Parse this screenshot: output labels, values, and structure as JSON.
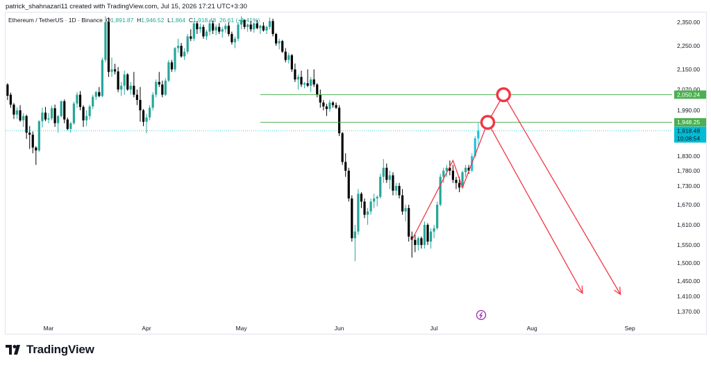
{
  "header": {
    "credit": "patrick_shahnazari11 created with TradingView.com, Jul 15, 2026 17:21 UTC+3:30"
  },
  "legend": {
    "symbol": "Ethereum / TetherUS · 1D · Binance",
    "o_label": "O",
    "o_value": "1,891.87",
    "h_label": "H",
    "h_value": "1,946.52",
    "l_label": "L",
    "l_value": "1,864",
    "c_label": "C",
    "c_value": "1,918.48",
    "change": "26.61 (+1.41%)"
  },
  "brand": {
    "name": "TradingView",
    "logo_icon": "tradingview-logo-icon"
  },
  "colors": {
    "up": "#26a69a",
    "up_bright": "#22c1dc",
    "down": "#000000",
    "level_line": "#4caf50",
    "projection": "#f23645",
    "price_tag": "#00bcd4"
  },
  "chart_data": {
    "type": "candlestick",
    "symbol": "ETHUSDT",
    "timeframe": "1D",
    "ylim": [
      1340,
      2380
    ],
    "y_ticks": [
      2350,
      2250,
      2150,
      2070,
      1990,
      1900,
      1830,
      1780,
      1730,
      1670,
      1610,
      1550,
      1500,
      1450,
      1410,
      1370
    ],
    "y_tick_labels": [
      "2,350.00",
      "2,250.00",
      "2,150.00",
      "2,070.00",
      "1,990.00",
      "1,900.00",
      "1,830.00",
      "1,780.00",
      "1,730.00",
      "1,670.00",
      "1,610.00",
      "1,550.00",
      "1,500.00",
      "1,450.00",
      "1,410.00",
      "1,370.00"
    ],
    "x_ticks": [
      "Mar",
      "Apr",
      "May",
      "Jun",
      "Jul",
      "Aug",
      "Sep"
    ],
    "x_tick_dates": [
      "2026-03-01",
      "2026-04-01",
      "2026-05-01",
      "2026-06-01",
      "2026-07-01",
      "2026-08-01",
      "2026-09-01"
    ],
    "horizontal_levels": [
      {
        "price": 2050.24,
        "label": "2,050.24",
        "start": "2026-05-07"
      },
      {
        "price": 1948.25,
        "label": "1,948.25",
        "start": "2026-05-07"
      }
    ],
    "current_price": {
      "price": 1918.48,
      "label": "1,918.48",
      "countdown": "10:08:54"
    },
    "projection_path": [
      {
        "date": "2026-06-24",
        "price": 1565
      },
      {
        "date": "2026-07-07",
        "price": 1815
      },
      {
        "date": "2026-07-10",
        "price": 1725
      },
      {
        "date": "2026-07-18",
        "price": 1948
      },
      {
        "date": "2026-07-23",
        "price": 2050
      }
    ],
    "projection_arrows": [
      {
        "from": {
          "date": "2026-07-18",
          "price": 1948
        },
        "to": {
          "date": "2026-08-17",
          "price": 1418
        }
      },
      {
        "from": {
          "date": "2026-07-23",
          "price": 2050
        },
        "to": {
          "date": "2026-08-29",
          "price": 1415
        }
      }
    ],
    "marked_points": [
      {
        "date": "2026-07-18",
        "price": 1948
      },
      {
        "date": "2026-07-23",
        "price": 2050
      }
    ],
    "candles": [
      [
        "2026-02-16",
        2090,
        2095,
        2030,
        2046
      ],
      [
        "2026-02-17",
        2050,
        2058,
        2000,
        2012
      ],
      [
        "2026-02-18",
        2012,
        2018,
        1960,
        1975
      ],
      [
        "2026-02-19",
        1975,
        2002,
        1960,
        1990
      ],
      [
        "2026-02-20",
        1990,
        2010,
        1950,
        1955
      ],
      [
        "2026-02-21",
        1955,
        1980,
        1932,
        1970
      ],
      [
        "2026-02-22",
        1970,
        1975,
        1890,
        1912
      ],
      [
        "2026-02-23",
        1912,
        1935,
        1855,
        1905
      ],
      [
        "2026-02-24",
        1905,
        1916,
        1840,
        1860
      ],
      [
        "2026-02-25",
        1860,
        1865,
        1800,
        1850
      ],
      [
        "2026-02-26",
        1850,
        1955,
        1845,
        1952
      ],
      [
        "2026-02-27",
        1952,
        2000,
        1930,
        1982
      ],
      [
        "2026-02-28",
        1982,
        2003,
        1952,
        1958
      ],
      [
        "2026-03-01",
        1958,
        1980,
        1945,
        1962
      ],
      [
        "2026-03-02",
        1962,
        2008,
        1955,
        1998
      ],
      [
        "2026-03-03",
        1998,
        2012,
        1932,
        1945
      ],
      [
        "2026-03-04",
        1945,
        1974,
        1912,
        1970
      ],
      [
        "2026-03-05",
        1970,
        2028,
        1965,
        2025
      ],
      [
        "2026-03-06",
        2025,
        2032,
        1945,
        1958
      ],
      [
        "2026-03-07",
        1958,
        1965,
        1920,
        1925
      ],
      [
        "2026-03-08",
        1925,
        1950,
        1912,
        1945
      ],
      [
        "2026-03-09",
        1945,
        2024,
        1940,
        2016
      ],
      [
        "2026-03-10",
        2016,
        2060,
        2000,
        2050
      ],
      [
        "2026-03-11",
        2050,
        2064,
        1990,
        2003
      ],
      [
        "2026-03-12",
        2003,
        2010,
        1932,
        1955
      ],
      [
        "2026-03-13",
        1955,
        1990,
        1935,
        1970
      ],
      [
        "2026-03-14",
        1970,
        2012,
        1958,
        2005
      ],
      [
        "2026-03-15",
        2005,
        2050,
        1995,
        2042
      ],
      [
        "2026-03-16",
        2042,
        2065,
        2030,
        2060
      ],
      [
        "2026-03-17",
        2060,
        2080,
        2040,
        2045
      ],
      [
        "2026-03-18",
        2045,
        2200,
        2040,
        2190
      ],
      [
        "2026-03-19",
        2190,
        2375,
        2180,
        2350
      ],
      [
        "2026-03-20",
        2350,
        2370,
        2120,
        2140
      ],
      [
        "2026-03-21",
        2140,
        2200,
        2120,
        2150
      ],
      [
        "2026-03-22",
        2150,
        2174,
        2130,
        2142
      ],
      [
        "2026-03-23",
        2142,
        2160,
        2060,
        2070
      ],
      [
        "2026-03-24",
        2070,
        2100,
        2045,
        2085
      ],
      [
        "2026-03-25",
        2085,
        2145,
        2050,
        2130
      ],
      [
        "2026-03-26",
        2130,
        2135,
        2065,
        2070
      ],
      [
        "2026-03-27",
        2070,
        2100,
        2050,
        2085
      ],
      [
        "2026-03-28",
        2085,
        2140,
        2040,
        2050
      ],
      [
        "2026-03-29",
        2050,
        2070,
        2010,
        2030
      ],
      [
        "2026-03-30",
        2030,
        2080,
        1950,
        1990
      ],
      [
        "2026-03-31",
        1990,
        1995,
        1935,
        1950
      ],
      [
        "2026-04-01",
        1950,
        1978,
        1910,
        1965
      ],
      [
        "2026-04-02",
        1965,
        2010,
        1955,
        2000
      ],
      [
        "2026-04-03",
        2000,
        2060,
        1990,
        2050
      ],
      [
        "2026-04-04",
        2050,
        2110,
        2040,
        2100
      ],
      [
        "2026-04-05",
        2100,
        2140,
        2080,
        2090
      ],
      [
        "2026-04-06",
        2090,
        2105,
        2040,
        2050
      ],
      [
        "2026-04-07",
        2050,
        2115,
        2045,
        2105
      ],
      [
        "2026-04-08",
        2105,
        2190,
        2100,
        2180
      ],
      [
        "2026-04-09",
        2180,
        2190,
        2140,
        2150
      ],
      [
        "2026-04-10",
        2150,
        2245,
        2140,
        2240
      ],
      [
        "2026-04-11",
        2240,
        2280,
        2220,
        2250
      ],
      [
        "2026-04-12",
        2250,
        2262,
        2200,
        2205
      ],
      [
        "2026-04-13",
        2205,
        2240,
        2190,
        2225
      ],
      [
        "2026-04-14",
        2225,
        2300,
        2215,
        2290
      ],
      [
        "2026-04-15",
        2290,
        2320,
        2270,
        2280
      ],
      [
        "2026-04-16",
        2280,
        2355,
        2270,
        2345
      ],
      [
        "2026-04-17",
        2345,
        2356,
        2300,
        2320
      ],
      [
        "2026-04-18",
        2320,
        2345,
        2305,
        2330
      ],
      [
        "2026-04-19",
        2330,
        2340,
        2280,
        2290
      ],
      [
        "2026-04-20",
        2290,
        2318,
        2275,
        2310
      ],
      [
        "2026-04-21",
        2310,
        2360,
        2295,
        2345
      ],
      [
        "2026-04-22",
        2345,
        2356,
        2300,
        2315
      ],
      [
        "2026-04-23",
        2315,
        2340,
        2295,
        2330
      ],
      [
        "2026-04-24",
        2330,
        2346,
        2300,
        2310
      ],
      [
        "2026-04-25",
        2310,
        2330,
        2285,
        2320
      ],
      [
        "2026-04-26",
        2320,
        2345,
        2305,
        2335
      ],
      [
        "2026-04-27",
        2335,
        2350,
        2290,
        2300
      ],
      [
        "2026-04-28",
        2300,
        2310,
        2255,
        2265
      ],
      [
        "2026-04-29",
        2265,
        2290,
        2240,
        2280
      ],
      [
        "2026-04-30",
        2280,
        2350,
        2270,
        2340
      ],
      [
        "2026-05-01",
        2340,
        2375,
        2320,
        2360
      ],
      [
        "2026-05-02",
        2360,
        2362,
        2320,
        2330
      ],
      [
        "2026-05-03",
        2330,
        2345,
        2310,
        2340
      ],
      [
        "2026-05-04",
        2340,
        2355,
        2310,
        2320
      ],
      [
        "2026-05-05",
        2320,
        2350,
        2305,
        2345
      ],
      [
        "2026-05-06",
        2345,
        2360,
        2320,
        2325
      ],
      [
        "2026-05-07",
        2325,
        2340,
        2300,
        2335
      ],
      [
        "2026-05-08",
        2335,
        2350,
        2310,
        2315
      ],
      [
        "2026-05-09",
        2315,
        2336,
        2300,
        2330
      ],
      [
        "2026-05-10",
        2330,
        2370,
        2320,
        2355
      ],
      [
        "2026-05-11",
        2355,
        2365,
        2290,
        2300
      ],
      [
        "2026-05-12",
        2300,
        2305,
        2250,
        2260
      ],
      [
        "2026-05-13",
        2260,
        2280,
        2235,
        2270
      ],
      [
        "2026-05-14",
        2270,
        2275,
        2220,
        2225
      ],
      [
        "2026-05-15",
        2225,
        2240,
        2180,
        2190
      ],
      [
        "2026-05-16",
        2190,
        2220,
        2175,
        2210
      ],
      [
        "2026-05-17",
        2210,
        2215,
        2140,
        2150
      ],
      [
        "2026-05-18",
        2150,
        2175,
        2100,
        2110
      ],
      [
        "2026-05-19",
        2110,
        2130,
        2070,
        2120
      ],
      [
        "2026-05-20",
        2120,
        2145,
        2080,
        2090
      ],
      [
        "2026-05-21",
        2090,
        2100,
        2075,
        2095
      ],
      [
        "2026-05-22",
        2095,
        2150,
        2080,
        2085
      ],
      [
        "2026-05-23",
        2085,
        2120,
        2060,
        2110
      ],
      [
        "2026-05-24",
        2110,
        2150,
        2080,
        2090
      ],
      [
        "2026-05-25",
        2090,
        2095,
        2040,
        2050
      ],
      [
        "2026-05-26",
        2050,
        2070,
        2000,
        2020
      ],
      [
        "2026-05-27",
        2020,
        2030,
        1990,
        2005
      ],
      [
        "2026-05-28",
        2005,
        2015,
        1970,
        1995
      ],
      [
        "2026-05-29",
        1995,
        2030,
        1985,
        2020
      ],
      [
        "2026-05-30",
        2020,
        2025,
        2000,
        2010
      ],
      [
        "2026-05-31",
        2010,
        2020,
        1995,
        2000
      ],
      [
        "2026-06-01",
        2000,
        2010,
        1900,
        1910
      ],
      [
        "2026-06-02",
        1910,
        1915,
        1800,
        1810
      ],
      [
        "2026-06-03",
        1810,
        1840,
        1760,
        1780
      ],
      [
        "2026-06-04",
        1780,
        1790,
        1680,
        1690
      ],
      [
        "2026-06-05",
        1690,
        1700,
        1560,
        1570
      ],
      [
        "2026-06-06",
        1570,
        1610,
        1505,
        1590
      ],
      [
        "2026-06-07",
        1590,
        1720,
        1580,
        1705
      ],
      [
        "2026-06-08",
        1705,
        1710,
        1660,
        1680
      ],
      [
        "2026-06-09",
        1680,
        1690,
        1630,
        1640
      ],
      [
        "2026-06-10",
        1640,
        1660,
        1610,
        1650
      ],
      [
        "2026-06-11",
        1650,
        1690,
        1640,
        1680
      ],
      [
        "2026-06-12",
        1680,
        1705,
        1660,
        1690
      ],
      [
        "2026-06-13",
        1690,
        1700,
        1665,
        1695
      ],
      [
        "2026-06-14",
        1695,
        1770,
        1690,
        1760
      ],
      [
        "2026-06-15",
        1760,
        1820,
        1740,
        1790
      ],
      [
        "2026-06-16",
        1790,
        1805,
        1740,
        1750
      ],
      [
        "2026-06-17",
        1750,
        1780,
        1720,
        1765
      ],
      [
        "2026-06-18",
        1765,
        1775,
        1700,
        1715
      ],
      [
        "2026-06-19",
        1715,
        1740,
        1700,
        1730
      ],
      [
        "2026-06-20",
        1730,
        1740,
        1690,
        1700
      ],
      [
        "2026-06-21",
        1700,
        1720,
        1640,
        1650
      ],
      [
        "2026-06-22",
        1650,
        1670,
        1620,
        1660
      ],
      [
        "2026-06-23",
        1660,
        1670,
        1560,
        1575
      ],
      [
        "2026-06-24",
        1575,
        1590,
        1515,
        1565
      ],
      [
        "2026-06-25",
        1565,
        1580,
        1530,
        1550
      ],
      [
        "2026-06-26",
        1550,
        1575,
        1535,
        1570
      ],
      [
        "2026-06-27",
        1570,
        1575,
        1540,
        1550
      ],
      [
        "2026-06-28",
        1550,
        1620,
        1540,
        1610
      ],
      [
        "2026-06-29",
        1610,
        1615,
        1550,
        1560
      ],
      [
        "2026-06-30",
        1560,
        1600,
        1540,
        1590
      ],
      [
        "2026-07-01",
        1590,
        1610,
        1570,
        1600
      ],
      [
        "2026-07-02",
        1600,
        1680,
        1595,
        1670
      ],
      [
        "2026-07-03",
        1670,
        1770,
        1665,
        1760
      ],
      [
        "2026-07-04",
        1760,
        1790,
        1740,
        1780
      ],
      [
        "2026-07-05",
        1780,
        1800,
        1760,
        1790
      ],
      [
        "2026-07-06",
        1790,
        1815,
        1765,
        1780
      ],
      [
        "2026-07-07",
        1780,
        1800,
        1740,
        1750
      ],
      [
        "2026-07-08",
        1750,
        1760,
        1720,
        1740
      ],
      [
        "2026-07-09",
        1740,
        1760,
        1710,
        1725
      ],
      [
        "2026-07-10",
        1725,
        1780,
        1720,
        1775
      ],
      [
        "2026-07-11",
        1775,
        1800,
        1760,
        1790
      ],
      [
        "2026-07-12",
        1790,
        1800,
        1770,
        1780
      ],
      [
        "2026-07-13",
        1780,
        1840,
        1775,
        1830
      ],
      [
        "2026-07-14",
        1830,
        1900,
        1825,
        1892
      ],
      [
        "2026-07-15",
        1891.87,
        1946.52,
        1864,
        1918.48
      ]
    ]
  }
}
